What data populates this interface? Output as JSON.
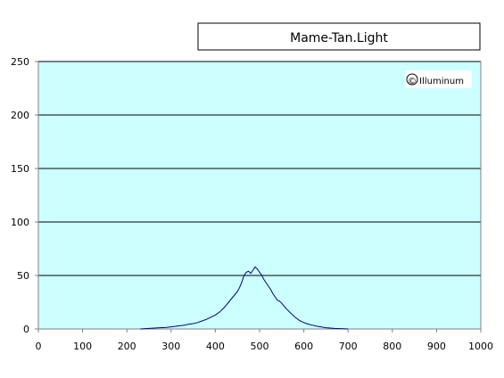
{
  "chart_data": {
    "type": "line",
    "title": "Mame-Tan.Light",
    "watermark": "© Illuminum",
    "xlabel": "",
    "ylabel": "",
    "xlim": [
      0,
      1000
    ],
    "ylim": [
      0,
      250
    ],
    "x_ticks": [
      0,
      100,
      200,
      300,
      400,
      500,
      600,
      700,
      800,
      900,
      1000
    ],
    "y_ticks": [
      0,
      50,
      100,
      150,
      200,
      250
    ],
    "grid": "horizontal",
    "legend": "none",
    "colors": {
      "plot_bg": "#CCFFFF",
      "line": "#000080",
      "grid": "#000000",
      "axis": "#808080"
    },
    "series": [
      {
        "x": [
          230,
          250,
          270,
          290,
          300,
          310,
          320,
          330,
          340,
          350,
          360,
          370,
          380,
          390,
          400,
          410,
          420,
          430,
          440,
          450,
          455,
          460,
          465,
          470,
          475,
          480,
          485,
          490,
          495,
          500,
          505,
          510,
          515,
          520,
          525,
          530,
          535,
          540,
          545,
          550,
          560,
          570,
          580,
          590,
          600,
          610,
          620,
          630,
          640,
          650,
          660,
          670,
          680,
          690,
          700
        ],
        "values": [
          0,
          0.5,
          1,
          1.5,
          2,
          2.5,
          3,
          3.5,
          4.5,
          5,
          6,
          7.5,
          9,
          11,
          13,
          16,
          20,
          25,
          30,
          35,
          39,
          44,
          50,
          53,
          54,
          52,
          55,
          58,
          56,
          53,
          50,
          46,
          43,
          40,
          37,
          33,
          30,
          27,
          26,
          24,
          19,
          15,
          11,
          8,
          6,
          4.5,
          3.5,
          2.5,
          1.8,
          1.2,
          0.8,
          0.5,
          0.3,
          0.2,
          0
        ]
      }
    ]
  }
}
